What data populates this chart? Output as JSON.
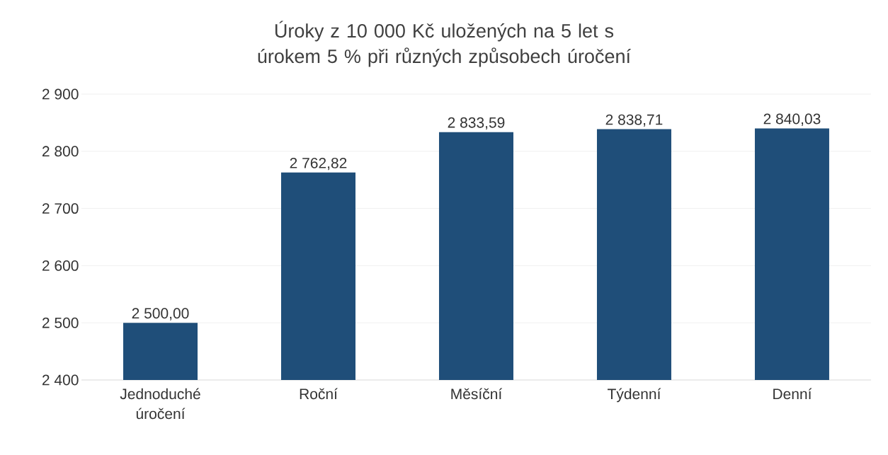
{
  "chart_data": {
    "type": "bar",
    "title": "Úroky z 10 000 Kč uložených na 5 let s úrokem 5 % při různých způsobech úročení",
    "categories": [
      "Jednoduché úročení",
      "Roční",
      "Měsíční",
      "Týdenní",
      "Denní"
    ],
    "values": [
      2500.0,
      2762.82,
      2833.59,
      2838.71,
      2840.03
    ],
    "value_labels": [
      "2 500,00",
      "2 762,82",
      "2 833,59",
      "2 838,71",
      "2 840,03"
    ],
    "color": "#1f4e79",
    "ylim": [
      2400,
      2900
    ],
    "yticks": [
      {
        "value": 2400,
        "label": "2 400"
      },
      {
        "value": 2500,
        "label": "2 500"
      },
      {
        "value": 2600,
        "label": "2 600"
      },
      {
        "value": 2700,
        "label": "2 700"
      },
      {
        "value": 2800,
        "label": "2 800"
      },
      {
        "value": 2900,
        "label": "2 900"
      }
    ],
    "grid": "y"
  }
}
